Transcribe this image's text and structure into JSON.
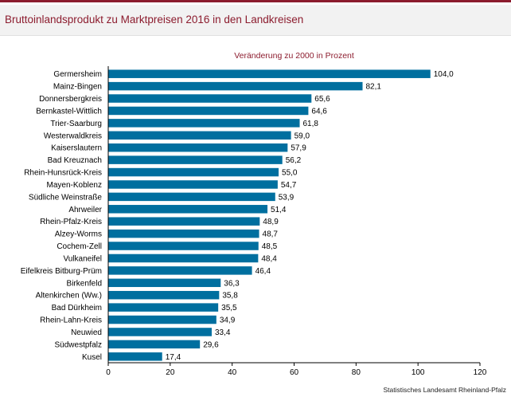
{
  "chart_data": {
    "type": "bar",
    "orientation": "horizontal",
    "title": "Bruttoinlandsprodukt zu Marktpreisen 2016 in den Landkreisen",
    "subtitle": "Veränderung zu 2000 in Prozent",
    "categories": [
      "Germersheim",
      "Mainz-Bingen",
      "Donnersbergkreis",
      "Bernkastel-Wittlich",
      "Trier-Saarburg",
      "Westerwaldkreis",
      "Kaiserslautern",
      "Bad Kreuznach",
      "Rhein-Hunsrück-Kreis",
      "Mayen-Koblenz",
      "Südliche Weinstraße",
      "Ahrweiler",
      "Rhein-Pfalz-Kreis",
      "Alzey-Worms",
      "Cochem-Zell",
      "Vulkaneifel",
      "Eifelkreis Bitburg-Prüm",
      "Birkenfeld",
      "Altenkirchen (Ww.)",
      "Bad Dürkheim",
      "Rhein-Lahn-Kreis",
      "Neuwied",
      "Südwestpfalz",
      "Kusel"
    ],
    "values": [
      104.0,
      82.1,
      65.6,
      64.6,
      61.8,
      59.0,
      57.9,
      56.2,
      55.0,
      54.7,
      53.9,
      51.4,
      48.9,
      48.7,
      48.5,
      48.4,
      46.4,
      36.3,
      35.8,
      35.5,
      34.9,
      33.4,
      29.6,
      17.4
    ],
    "value_labels": [
      "104,0",
      "82,1",
      "65,6",
      "64,6",
      "61,8",
      "59,0",
      "57,9",
      "56,2",
      "55,0",
      "54,7",
      "53,9",
      "51,4",
      "48,9",
      "48,7",
      "48,5",
      "48,4",
      "46,4",
      "36,3",
      "35,8",
      "35,5",
      "34,9",
      "33,4",
      "29,6",
      "17,4"
    ],
    "xlim": [
      0,
      120
    ],
    "xticks": [
      0,
      20,
      40,
      60,
      80,
      100,
      120
    ],
    "grid": false,
    "legend": "none",
    "source": "Statistisches Landesamt Rheinland-Pfalz",
    "colors": {
      "bar": "#006f9f",
      "title": "#8c1c2e",
      "subtitle": "#8c1c2e",
      "text": "#000000"
    }
  }
}
